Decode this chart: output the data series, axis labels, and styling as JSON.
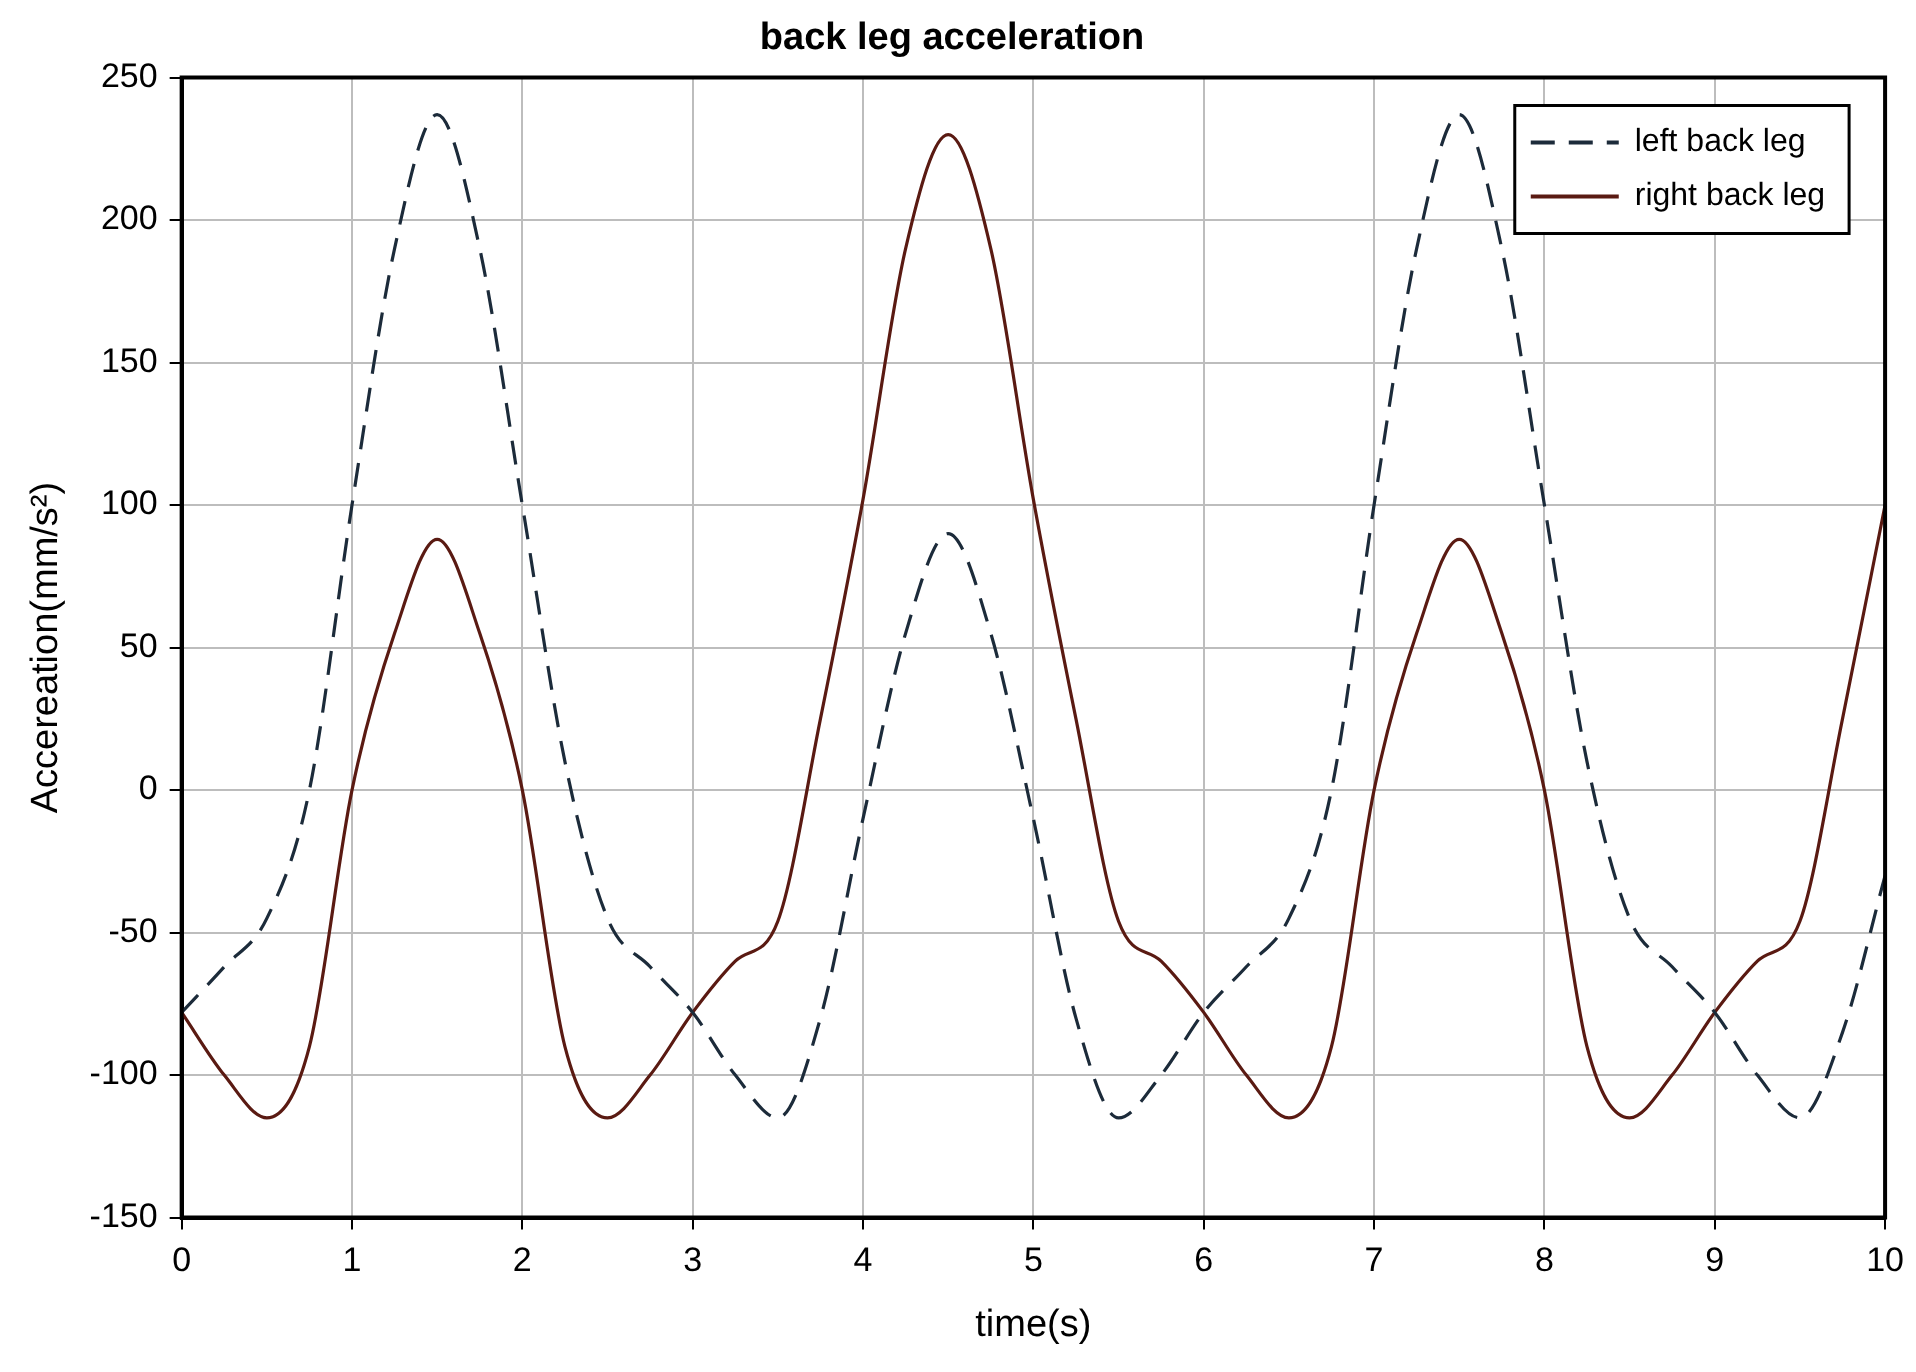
{
  "chart_data": {
    "type": "line",
    "title": "back leg acceleration",
    "xlabel": "time(s)",
    "ylabel": "Accereation(mm/s²)",
    "x": [
      0,
      0.25,
      0.5,
      0.75,
      1,
      1.25,
      1.5,
      1.75,
      2,
      2.25,
      2.5,
      2.75,
      3,
      3.25,
      3.5,
      3.75,
      4,
      4.25,
      4.5,
      4.75,
      5,
      5.25,
      5.5,
      5.75,
      6,
      6.25,
      6.5,
      6.75,
      7,
      7.25,
      7.5,
      7.75,
      8,
      8.25,
      8.5,
      8.75,
      9,
      9.25,
      9.5,
      9.75,
      10
    ],
    "series": [
      {
        "name": "left back leg",
        "color": "#1c2b3a",
        "line_style": "dashed",
        "values": [
          -78,
          -62,
          -45,
          0,
          100,
          190,
          237,
          190,
          100,
          10,
          -45,
          -62,
          -78,
          -100,
          -115,
          -80,
          -10,
          55,
          90,
          55,
          -10,
          -80,
          -115,
          -100,
          -78,
          -62,
          -45,
          0,
          100,
          190,
          237,
          190,
          100,
          10,
          -45,
          -62,
          -78,
          -100,
          -115,
          -85,
          -30
        ]
      },
      {
        "name": "right back leg",
        "color": "#5a1a12",
        "line_style": "solid",
        "values": [
          -78,
          -100,
          -115,
          -90,
          0,
          55,
          88,
          55,
          0,
          -90,
          -115,
          -100,
          -78,
          -60,
          -46,
          25,
          102,
          190,
          230,
          190,
          102,
          25,
          -46,
          -60,
          -78,
          -100,
          -115,
          -90,
          0,
          55,
          88,
          55,
          0,
          -90,
          -115,
          -100,
          -78,
          -60,
          -46,
          25,
          100
        ]
      }
    ],
    "xlim": [
      0,
      10
    ],
    "xticks": [
      0,
      1,
      2,
      3,
      4,
      5,
      6,
      7,
      8,
      9,
      10
    ],
    "ylim": [
      -150,
      250
    ],
    "yticks": [
      -150,
      -100,
      -50,
      0,
      50,
      100,
      150,
      200,
      250
    ],
    "grid": true,
    "legend": "top right",
    "marker": "none"
  }
}
